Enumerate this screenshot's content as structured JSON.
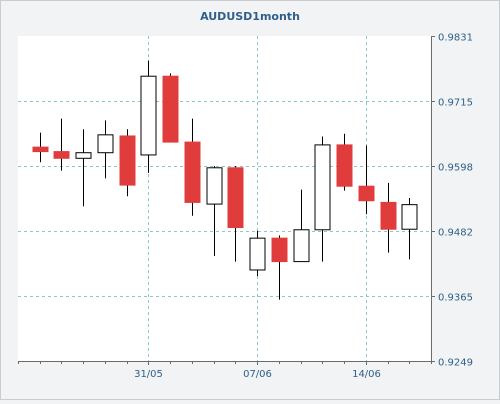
{
  "chart_data": {
    "type": "candlestick",
    "title": "AUDUSD1month",
    "xlabel": "",
    "ylabel": "",
    "ylim": [
      0.9249,
      0.9831
    ],
    "y_ticks": [
      "0.9831",
      "0.9715",
      "0.9598",
      "0.9482",
      "0.9365",
      "0.9249"
    ],
    "x_tick_labels": [
      "31/05",
      "07/06",
      "14/06"
    ],
    "x_tick_positions": [
      5,
      10,
      15
    ],
    "grid": true,
    "colors": {
      "bullish": "#ffffff",
      "bearish": "#e03c3c",
      "grid": "#8cc7cc",
      "axis": "#6b6b6b",
      "text": "#2f5f8a"
    },
    "candles": [
      {
        "open": 0.9632,
        "high": 0.9658,
        "low": 0.9605,
        "close": 0.9624
      },
      {
        "open": 0.9624,
        "high": 0.9683,
        "low": 0.959,
        "close": 0.9612
      },
      {
        "open": 0.9612,
        "high": 0.9664,
        "low": 0.9526,
        "close": 0.9622
      },
      {
        "open": 0.9622,
        "high": 0.968,
        "low": 0.9576,
        "close": 0.9654
      },
      {
        "open": 0.9652,
        "high": 0.9664,
        "low": 0.9544,
        "close": 0.9564
      },
      {
        "open": 0.9618,
        "high": 0.9787,
        "low": 0.9586,
        "close": 0.9759
      },
      {
        "open": 0.9759,
        "high": 0.9764,
        "low": 0.9644,
        "close": 0.9641
      },
      {
        "open": 0.9641,
        "high": 0.9683,
        "low": 0.9509,
        "close": 0.9533
      },
      {
        "open": 0.953,
        "high": 0.9598,
        "low": 0.9437,
        "close": 0.9595
      },
      {
        "open": 0.9595,
        "high": 0.9598,
        "low": 0.9427,
        "close": 0.9488
      },
      {
        "open": 0.9412,
        "high": 0.9482,
        "low": 0.9401,
        "close": 0.9469
      },
      {
        "open": 0.9469,
        "high": 0.9474,
        "low": 0.9359,
        "close": 0.9427
      },
      {
        "open": 0.9427,
        "high": 0.9556,
        "low": 0.9427,
        "close": 0.9484
      },
      {
        "open": 0.9484,
        "high": 0.9651,
        "low": 0.9427,
        "close": 0.9636
      },
      {
        "open": 0.9636,
        "high": 0.9656,
        "low": 0.9554,
        "close": 0.9562
      },
      {
        "open": 0.9562,
        "high": 0.9635,
        "low": 0.9512,
        "close": 0.9536
      },
      {
        "open": 0.9533,
        "high": 0.9568,
        "low": 0.9443,
        "close": 0.9485
      },
      {
        "open": 0.9485,
        "high": 0.9541,
        "low": 0.9431,
        "close": 0.9529
      }
    ]
  }
}
